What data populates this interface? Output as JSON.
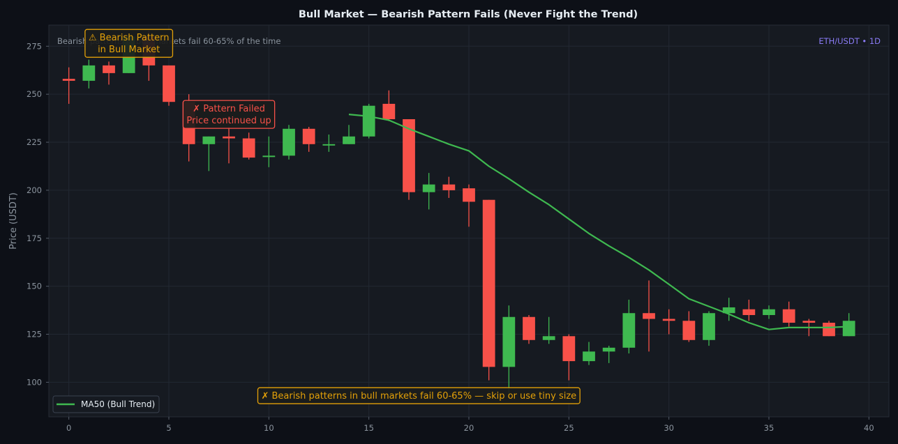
{
  "chart_data": {
    "type": "candlestick",
    "title": "Bull Market — Bearish Pattern Fails (Never Fight the Trend)",
    "subtitle": "Bearish patterns in bull markets fail 60-65% of the time",
    "watermark": "ETH/USDT • 1D",
    "xlabel": "",
    "ylabel": "Price (USDT)",
    "xlim": [
      -1,
      41
    ],
    "ylim": [
      82,
      286
    ],
    "x_ticks": [
      0,
      5,
      10,
      15,
      20,
      25,
      30,
      35,
      40
    ],
    "y_ticks": [
      100,
      125,
      150,
      175,
      200,
      225,
      250,
      275
    ],
    "grid": true,
    "legend": {
      "position": "lower-left",
      "entries": [
        {
          "label": "MA50 (Bull Trend)",
          "color": "#3fb950"
        }
      ]
    },
    "colors": {
      "background": "#0d1017",
      "plot_background": "#161a21",
      "up": "#3fb950",
      "down": "#f85149",
      "ma": "#3fb950",
      "annotation_warn": "#e3a008",
      "annotation_fail": "#f85149",
      "watermark": "#8b7cf6",
      "grid": "#222832",
      "text": "#8b949e",
      "title": "#e6edf3"
    },
    "candles": [
      {
        "x": 0,
        "open": 258,
        "high": 264,
        "low": 245,
        "close": 257
      },
      {
        "x": 1,
        "open": 257,
        "high": 268,
        "low": 253,
        "close": 265
      },
      {
        "x": 2,
        "open": 265,
        "high": 267,
        "low": 255,
        "close": 261
      },
      {
        "x": 3,
        "open": 261,
        "high": 280,
        "low": 261,
        "close": 280
      },
      {
        "x": 4,
        "open": 280,
        "high": 283,
        "low": 257,
        "close": 265
      },
      {
        "x": 5,
        "open": 265,
        "high": 265,
        "low": 244,
        "close": 246
      },
      {
        "x": 6,
        "open": 246,
        "high": 250,
        "low": 215,
        "close": 224
      },
      {
        "x": 7,
        "open": 224,
        "high": 228,
        "low": 210,
        "close": 228
      },
      {
        "x": 8,
        "open": 228,
        "high": 233,
        "low": 214,
        "close": 227
      },
      {
        "x": 9,
        "open": 227,
        "high": 230,
        "low": 216,
        "close": 217
      },
      {
        "x": 10,
        "open": 218,
        "high": 228,
        "low": 212,
        "close": 218
      },
      {
        "x": 11,
        "open": 218,
        "high": 234,
        "low": 216,
        "close": 232
      },
      {
        "x": 12,
        "open": 232,
        "high": 233,
        "low": 220,
        "close": 224
      },
      {
        "x": 13,
        "open": 224,
        "high": 229,
        "low": 220,
        "close": 224
      },
      {
        "x": 14,
        "open": 224,
        "high": 234,
        "low": 224,
        "close": 228
      },
      {
        "x": 15,
        "open": 228,
        "high": 245,
        "low": 227,
        "close": 244
      },
      {
        "x": 16,
        "open": 245,
        "high": 252,
        "low": 236,
        "close": 237
      },
      {
        "x": 17,
        "open": 237,
        "high": 237,
        "low": 195,
        "close": 199
      },
      {
        "x": 18,
        "open": 199,
        "high": 209,
        "low": 190,
        "close": 203
      },
      {
        "x": 19,
        "open": 203,
        "high": 207,
        "low": 196,
        "close": 200
      },
      {
        "x": 20,
        "open": 201,
        "high": 203,
        "low": 181,
        "close": 194
      },
      {
        "x": 21,
        "open": 195,
        "high": 195,
        "low": 101,
        "close": 108
      },
      {
        "x": 22,
        "open": 108,
        "high": 140,
        "low": 92,
        "close": 134
      },
      {
        "x": 23,
        "open": 134,
        "high": 135,
        "low": 120,
        "close": 122
      },
      {
        "x": 24,
        "open": 122,
        "high": 134,
        "low": 120,
        "close": 124
      },
      {
        "x": 25,
        "open": 124,
        "high": 125,
        "low": 101,
        "close": 111
      },
      {
        "x": 26,
        "open": 111,
        "high": 121,
        "low": 109,
        "close": 116
      },
      {
        "x": 27,
        "open": 116,
        "high": 119,
        "low": 110,
        "close": 118
      },
      {
        "x": 28,
        "open": 118,
        "high": 143,
        "low": 115,
        "close": 136
      },
      {
        "x": 29,
        "open": 136,
        "high": 153,
        "low": 116,
        "close": 133
      },
      {
        "x": 30,
        "open": 133,
        "high": 138,
        "low": 125,
        "close": 132
      },
      {
        "x": 31,
        "open": 132,
        "high": 137,
        "low": 121,
        "close": 122
      },
      {
        "x": 32,
        "open": 122,
        "high": 137,
        "low": 119,
        "close": 136
      },
      {
        "x": 33,
        "open": 136,
        "high": 144,
        "low": 132,
        "close": 139
      },
      {
        "x": 34,
        "open": 138,
        "high": 143,
        "low": 132,
        "close": 135
      },
      {
        "x": 35,
        "open": 135,
        "high": 140,
        "low": 133,
        "close": 138
      },
      {
        "x": 36,
        "open": 138,
        "high": 142,
        "low": 129,
        "close": 131
      },
      {
        "x": 37,
        "open": 132,
        "high": 133,
        "low": 124,
        "close": 131
      },
      {
        "x": 38,
        "open": 131,
        "high": 132,
        "low": 124,
        "close": 124
      },
      {
        "x": 39,
        "open": 124,
        "high": 136,
        "low": 124,
        "close": 132
      }
    ],
    "ma50": {
      "name": "MA50 (Bull Trend)",
      "x": [
        14,
        15,
        16,
        17,
        18,
        19,
        20,
        21,
        22,
        23,
        24,
        25,
        26,
        27,
        28,
        29,
        30,
        31,
        32,
        33,
        34,
        35,
        36,
        37,
        38,
        39
      ],
      "y": [
        239.5,
        238.5,
        236.5,
        232,
        228,
        224,
        220.5,
        212.5,
        206,
        199,
        192.5,
        185,
        177.5,
        171,
        165,
        158.5,
        151,
        143.5,
        139.5,
        135.5,
        131,
        127.5,
        128.5,
        128.5,
        128.5,
        129
      ]
    },
    "annotations": [
      {
        "id": "bearish-pattern",
        "lines": [
          "⚠ Bearish Pattern",
          "in Bull Market"
        ],
        "x": 3,
        "y": 276.5,
        "color": "#e3a008"
      },
      {
        "id": "pattern-failed",
        "lines": [
          "✗ Pattern Failed",
          "Price continued up"
        ],
        "x": 8,
        "y": 239.5,
        "color": "#f85149"
      },
      {
        "id": "bottom-note",
        "lines": [
          "✗ Bearish patterns in bull markets fail 60-65% — skip or use tiny size"
        ],
        "x": 17.5,
        "y": 93,
        "color": "#e3a008"
      }
    ]
  }
}
